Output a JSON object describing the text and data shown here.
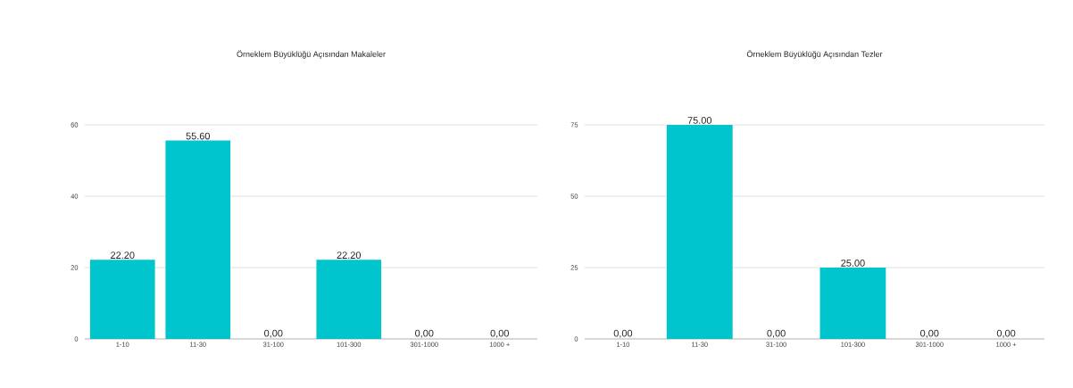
{
  "chart_data": [
    {
      "type": "bar",
      "title": "Örneklem Büyüklüğü Açısından Makaleler",
      "categories": [
        "1-10",
        "11-30",
        "31-100",
        "101-300",
        "301-1000",
        "1000 +"
      ],
      "values": [
        22.2,
        55.6,
        0,
        22.2,
        0,
        0
      ],
      "value_labels": [
        "22.20",
        "55.60",
        "0,00",
        "22.20",
        "0,00",
        "0,00"
      ],
      "color": "#00c5cc",
      "ylim": [
        0,
        60
      ],
      "yticks": [
        0,
        20,
        40,
        60
      ],
      "grid": "y"
    },
    {
      "type": "bar",
      "title": "Örneklem Büyüklüğü Açısından Tezler",
      "categories": [
        "1-10",
        "11-30",
        "31-100",
        "101-300",
        "301-1000",
        "1000 +"
      ],
      "values": [
        0,
        75,
        0,
        25,
        0,
        0
      ],
      "value_labels": [
        "0,00",
        "75.00",
        "0,00",
        "25.00",
        "0,00",
        "0,00"
      ],
      "color": "#00c5cc",
      "ylim": [
        0,
        75
      ],
      "yticks": [
        0,
        25,
        50,
        75
      ],
      "grid": "y"
    }
  ]
}
